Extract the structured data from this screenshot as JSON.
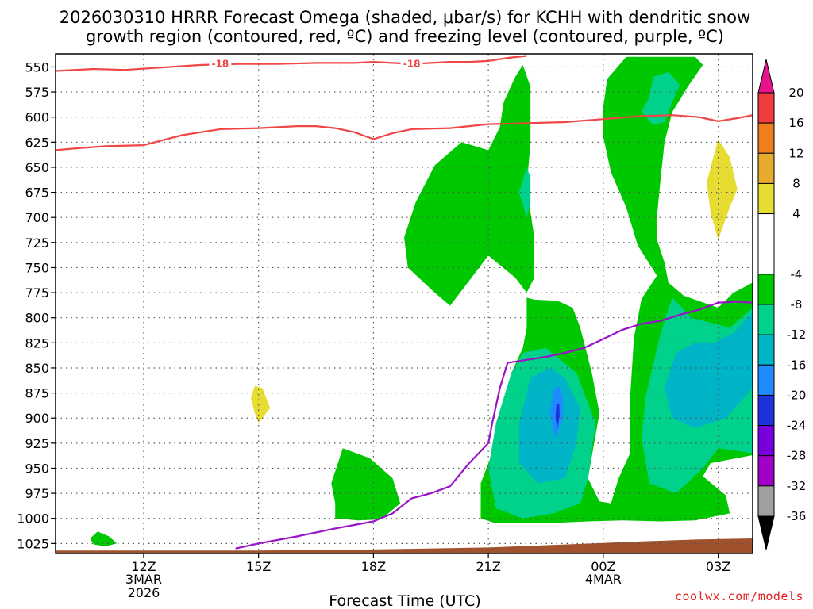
{
  "title_line1": "2026030310 HRRR Forecast Omega (shaded, μbar/s) for KCHH with dendritic snow",
  "title_line2": "growth region (contoured, red, ºC) and freezing level (contoured, purple, ºC)",
  "credit": "coolwx.com/models",
  "chart_data": {
    "type": "contour",
    "xlabel": "Forecast Time (UTC)",
    "ylabel": "",
    "x_unit": "forecast hour",
    "xlim": [
      9.7,
      27.9
    ],
    "y_unit": "mb",
    "ylim": [
      1035,
      537
    ],
    "y_ticks": [
      550,
      575,
      600,
      625,
      650,
      675,
      700,
      725,
      750,
      775,
      800,
      825,
      850,
      875,
      900,
      925,
      950,
      975,
      1000,
      1025
    ],
    "x_ticks": [
      {
        "x": 12,
        "label": "12Z",
        "sub1": "3MAR",
        "sub2": "2026"
      },
      {
        "x": 15,
        "label": "15Z",
        "sub1": "",
        "sub2": ""
      },
      {
        "x": 18,
        "label": "18Z",
        "sub1": "",
        "sub2": ""
      },
      {
        "x": 21,
        "label": "21Z",
        "sub1": "",
        "sub2": ""
      },
      {
        "x": 24,
        "label": "00Z",
        "sub1": "4MAR",
        "sub2": ""
      },
      {
        "x": 27,
        "label": "03Z",
        "sub1": "",
        "sub2": ""
      }
    ],
    "colorbar": {
      "labels": [
        "20",
        "16",
        "12",
        "8",
        "4",
        "-4",
        "-8",
        "-12",
        "-16",
        "-20",
        "-24",
        "-28",
        "-32",
        "-36"
      ],
      "bands": [
        {
          "from": 16,
          "to": 20,
          "color": "#f03c3c"
        },
        {
          "from": 12,
          "to": 16,
          "color": "#f07d1e"
        },
        {
          "from": 8,
          "to": 12,
          "color": "#e6aa2d"
        },
        {
          "from": 4,
          "to": 8,
          "color": "#e6dc32"
        },
        {
          "from": -4,
          "to": 4,
          "color": "#ffffff"
        },
        {
          "from": -8,
          "to": -4,
          "color": "#00c800"
        },
        {
          "from": -12,
          "to": -8,
          "color": "#00d28c"
        },
        {
          "from": -16,
          "to": -12,
          "color": "#00b4c8"
        },
        {
          "from": -20,
          "to": -16,
          "color": "#1e8cff"
        },
        {
          "from": -24,
          "to": -20,
          "color": "#1e32dc"
        },
        {
          "from": -28,
          "to": -24,
          "color": "#7800dc"
        },
        {
          "from": -32,
          "to": -28,
          "color": "#a000c8"
        },
        {
          "from": -36,
          "to": -32,
          "color": "#a0a0a0"
        }
      ],
      "over_color": "#e6148c",
      "under_color": "#000000"
    },
    "omega_regions": [
      {
        "level": -4,
        "color": "#00c800",
        "points": [
          [
            20.8,
            1000
          ],
          [
            21.2,
            1005
          ],
          [
            22.4,
            1005
          ],
          [
            23.6,
            1003
          ],
          [
            24.5,
            1002
          ],
          [
            25.5,
            1003
          ],
          [
            26.4,
            1002
          ],
          [
            27.3,
            995
          ],
          [
            27.2,
            977
          ],
          [
            26.6,
            958
          ],
          [
            26.8,
            945
          ],
          [
            27.9,
            937
          ],
          [
            27.9,
            765
          ],
          [
            27.4,
            775
          ],
          [
            27.0,
            790
          ],
          [
            26.1,
            778
          ],
          [
            25.7,
            765
          ],
          [
            25.6,
            745
          ],
          [
            25.4,
            722
          ],
          [
            25.4,
            700
          ],
          [
            25.5,
            660
          ],
          [
            25.6,
            625
          ],
          [
            25.8,
            595
          ],
          [
            26.2,
            570
          ],
          [
            26.6,
            548
          ],
          [
            26.4,
            540
          ],
          [
            24.6,
            540
          ],
          [
            24.1,
            562
          ],
          [
            24.0,
            590
          ],
          [
            24.0,
            620
          ],
          [
            24.2,
            655
          ],
          [
            24.6,
            690
          ],
          [
            24.9,
            728
          ],
          [
            25.4,
            758
          ],
          [
            25.0,
            781
          ],
          [
            24.8,
            820
          ],
          [
            24.7,
            880
          ],
          [
            24.7,
            935
          ],
          [
            24.4,
            960
          ],
          [
            24.2,
            985
          ],
          [
            23.9,
            983
          ],
          [
            23.6,
            960
          ],
          [
            23.9,
            895
          ],
          [
            23.7,
            855
          ],
          [
            23.4,
            810
          ],
          [
            23.2,
            790
          ],
          [
            22.8,
            783
          ],
          [
            22.2,
            782
          ],
          [
            22.0,
            780
          ],
          [
            22.0,
            810
          ],
          [
            21.9,
            830
          ],
          [
            21.6,
            855
          ],
          [
            21.3,
            895
          ],
          [
            21.1,
            935
          ],
          [
            20.8,
            965
          ]
        ]
      },
      {
        "level": -4,
        "color": "#00c800",
        "points": [
          [
            21.7,
            560
          ],
          [
            21.4,
            585
          ],
          [
            21.3,
            610
          ],
          [
            21.0,
            633
          ],
          [
            20.3,
            625
          ],
          [
            19.6,
            648
          ],
          [
            19.1,
            685
          ],
          [
            18.8,
            720
          ],
          [
            18.9,
            750
          ],
          [
            19.6,
            775
          ],
          [
            20.0,
            788
          ],
          [
            20.3,
            773
          ],
          [
            21.0,
            738
          ],
          [
            21.7,
            760
          ],
          [
            22.0,
            775
          ],
          [
            22.2,
            760
          ],
          [
            22.2,
            720
          ],
          [
            22.1,
            695
          ],
          [
            22.0,
            670
          ],
          [
            22.1,
            625
          ],
          [
            22.1,
            570
          ],
          [
            21.9,
            548
          ]
        ]
      },
      {
        "level": -4,
        "color": "#00c800",
        "points": [
          [
            16.9,
            965
          ],
          [
            17.0,
            985
          ],
          [
            17.0,
            1000
          ],
          [
            17.6,
            1002
          ],
          [
            18.2,
            1001
          ],
          [
            18.7,
            985
          ],
          [
            18.5,
            960
          ],
          [
            17.9,
            940
          ],
          [
            17.2,
            930
          ]
        ]
      },
      {
        "level": -4,
        "color": "#00c800",
        "points": [
          [
            10.8,
            1013
          ],
          [
            11.1,
            1018
          ],
          [
            11.3,
            1025
          ],
          [
            11.0,
            1028
          ],
          [
            10.7,
            1026
          ],
          [
            10.6,
            1020
          ]
        ]
      },
      {
        "level": -8,
        "color": "#00d28c",
        "points": [
          [
            21.6,
            855
          ],
          [
            21.2,
            905
          ],
          [
            21.0,
            950
          ],
          [
            21.2,
            990
          ],
          [
            21.9,
            1000
          ],
          [
            22.7,
            995
          ],
          [
            23.4,
            985
          ],
          [
            23.6,
            960
          ],
          [
            23.8,
            905
          ],
          [
            23.3,
            855
          ],
          [
            22.5,
            830
          ],
          [
            21.9,
            835
          ]
        ]
      },
      {
        "level": -8,
        "color": "#00d28c",
        "points": [
          [
            25.1,
            880
          ],
          [
            25.0,
            920
          ],
          [
            25.2,
            965
          ],
          [
            25.9,
            975
          ],
          [
            26.6,
            950
          ],
          [
            27.0,
            930
          ],
          [
            27.9,
            935
          ],
          [
            27.9,
            790
          ],
          [
            27.6,
            800
          ],
          [
            27.3,
            810
          ],
          [
            26.3,
            800
          ],
          [
            25.8,
            780
          ],
          [
            25.5,
            815
          ]
        ]
      },
      {
        "level": -8,
        "color": "#00d28c",
        "points": [
          [
            25.0,
            595
          ],
          [
            25.3,
            608
          ],
          [
            25.6,
            605
          ],
          [
            25.8,
            585
          ],
          [
            26.0,
            568
          ],
          [
            25.7,
            555
          ],
          [
            25.3,
            560
          ],
          [
            25.2,
            580
          ]
        ]
      },
      {
        "level": -8,
        "color": "#00d28c",
        "points": [
          [
            22.0,
            650
          ],
          [
            21.8,
            675
          ],
          [
            22.0,
            700
          ],
          [
            22.1,
            685
          ],
          [
            22.1,
            660
          ]
        ]
      },
      {
        "level": -12,
        "color": "#00b4c8",
        "points": [
          [
            22.1,
            860
          ],
          [
            21.8,
            905
          ],
          [
            21.8,
            945
          ],
          [
            22.3,
            965
          ],
          [
            23.0,
            960
          ],
          [
            23.3,
            925
          ],
          [
            23.4,
            890
          ],
          [
            23.0,
            860
          ],
          [
            22.6,
            850
          ]
        ]
      },
      {
        "level": -12,
        "color": "#00b4c8",
        "points": [
          [
            25.9,
            835
          ],
          [
            25.6,
            870
          ],
          [
            25.8,
            900
          ],
          [
            26.4,
            910
          ],
          [
            27.2,
            900
          ],
          [
            27.9,
            870
          ],
          [
            27.9,
            795
          ],
          [
            27.4,
            815
          ],
          [
            26.9,
            825
          ],
          [
            26.4,
            825
          ]
        ]
      },
      {
        "level": -16,
        "color": "#1e8cff",
        "points": [
          [
            22.7,
            873
          ],
          [
            22.6,
            895
          ],
          [
            22.75,
            920
          ],
          [
            22.95,
            900
          ],
          [
            22.95,
            880
          ],
          [
            22.85,
            868
          ]
        ]
      },
      {
        "level": -20,
        "color": "#1e32dc",
        "points": [
          [
            22.78,
            885
          ],
          [
            22.75,
            900
          ],
          [
            22.8,
            910
          ],
          [
            22.86,
            898
          ],
          [
            22.85,
            886
          ]
        ]
      },
      {
        "level": 4,
        "color": "#e6dc32",
        "points": [
          [
            14.8,
            880
          ],
          [
            14.9,
            895
          ],
          [
            15.0,
            905
          ],
          [
            15.3,
            890
          ],
          [
            15.1,
            870
          ],
          [
            14.9,
            868
          ]
        ]
      },
      {
        "level": 4,
        "color": "#e6dc32",
        "points": [
          [
            27.0,
            622
          ],
          [
            26.7,
            665
          ],
          [
            26.8,
            695
          ],
          [
            27.0,
            722
          ],
          [
            27.3,
            690
          ],
          [
            27.5,
            672
          ],
          [
            27.3,
            640
          ]
        ]
      }
    ],
    "series": [
      {
        "name": "",
        "color": "#f04646",
        "points": [
          [
            9.7,
            554
          ],
          [
            10.7,
            552
          ],
          [
            11.5,
            553
          ],
          [
            12.3,
            551
          ],
          [
            13.5,
            548
          ],
          [
            14.5,
            547
          ],
          [
            15.5,
            547
          ],
          [
            16.5,
            546
          ],
          [
            17.5,
            546
          ],
          [
            18.0,
            545
          ],
          [
            18.5,
            546
          ],
          [
            19.0,
            547
          ],
          [
            19.5,
            546
          ],
          [
            20.0,
            545
          ],
          [
            20.5,
            545
          ],
          [
            21.0,
            544
          ],
          [
            21.5,
            541
          ],
          [
            22.0,
            539
          ]
        ],
        "labels": [
          {
            "x": 14.0,
            "y": 547,
            "text": "-18"
          },
          {
            "x": 19.0,
            "y": 547,
            "text": "-18"
          }
        ]
      },
      {
        "name": "",
        "color": "#f04646",
        "points": [
          [
            9.7,
            633
          ],
          [
            10.3,
            631
          ],
          [
            11.0,
            629
          ],
          [
            12.0,
            628
          ],
          [
            13.0,
            618
          ],
          [
            14.0,
            612
          ],
          [
            15.0,
            611
          ],
          [
            16.0,
            609
          ],
          [
            16.5,
            609
          ],
          [
            17.0,
            611
          ],
          [
            17.5,
            615
          ],
          [
            18.0,
            622
          ],
          [
            18.5,
            616
          ],
          [
            19.0,
            612
          ],
          [
            20.0,
            611
          ],
          [
            21.0,
            607
          ],
          [
            22.0,
            606
          ],
          [
            23.0,
            605
          ],
          [
            24.0,
            602
          ],
          [
            25.0,
            599
          ],
          [
            25.8,
            598
          ],
          [
            26.5,
            600
          ],
          [
            27.0,
            604
          ],
          [
            27.5,
            601
          ],
          [
            27.9,
            598
          ]
        ],
        "labels": []
      },
      {
        "name": "",
        "color": "#9a12c8",
        "points": [
          [
            14.4,
            1030
          ],
          [
            15.0,
            1025
          ],
          [
            16.0,
            1018
          ],
          [
            17.0,
            1010
          ],
          [
            18.0,
            1003
          ],
          [
            18.5,
            995
          ],
          [
            19.0,
            980
          ],
          [
            19.5,
            975
          ],
          [
            20.0,
            968
          ],
          [
            20.5,
            945
          ],
          [
            21.0,
            925
          ],
          [
            21.1,
            905
          ],
          [
            21.3,
            870
          ],
          [
            21.5,
            845
          ],
          [
            22.0,
            842
          ],
          [
            22.5,
            839
          ],
          [
            23.0,
            835
          ],
          [
            23.5,
            830
          ],
          [
            23.9,
            823
          ],
          [
            24.5,
            812
          ],
          [
            25.0,
            806
          ],
          [
            25.5,
            803
          ],
          [
            26.0,
            797
          ],
          [
            26.5,
            792
          ],
          [
            27.0,
            785
          ],
          [
            27.5,
            784
          ],
          [
            27.9,
            785
          ]
        ],
        "labels": []
      }
    ],
    "terrain": {
      "color": "#a0522d",
      "points": [
        [
          9.7,
          1032
        ],
        [
          15.0,
          1032
        ],
        [
          18.0,
          1031
        ],
        [
          21.0,
          1029
        ],
        [
          23.0,
          1026
        ],
        [
          25.0,
          1023
        ],
        [
          26.5,
          1021
        ],
        [
          27.9,
          1020
        ]
      ]
    }
  }
}
